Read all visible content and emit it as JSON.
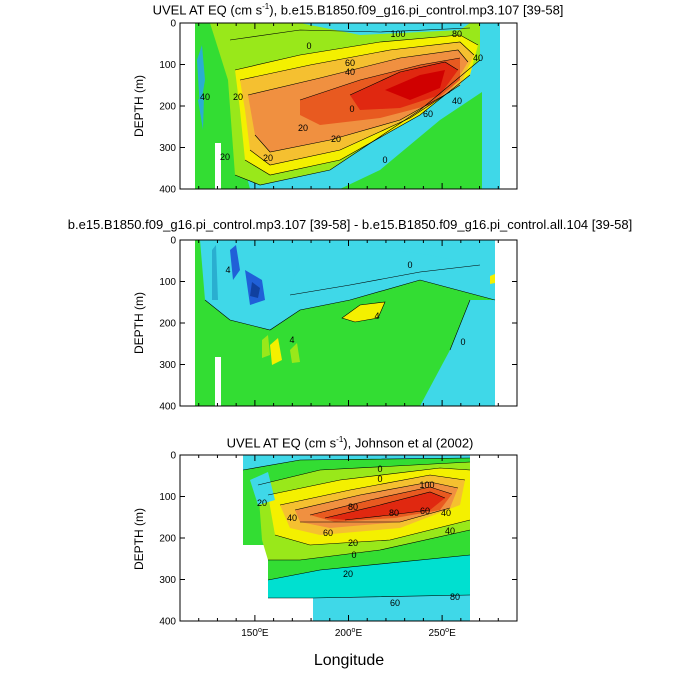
{
  "chart_data": [
    {
      "type": "heatmap",
      "title": "UVEL AT EQ (cm s",
      "title_sup": "-1",
      "title_rest": "), b.e15.B1850.f09_g16.pi_control.mp3.107 [39-58]",
      "ylabel": "DEPTH (m)",
      "ylim": [
        400,
        0
      ],
      "xlim": [
        110,
        290
      ],
      "yticks": [
        "0",
        "100",
        "200",
        "300",
        "400"
      ],
      "contour_labels": [
        "0",
        "20",
        "40",
        "60",
        "80",
        "100",
        "40",
        "20",
        "0",
        "60",
        "40",
        "20",
        "0",
        "20",
        "40",
        "20"
      ],
      "core": {
        "lon": 243,
        "depth": 80,
        "value": 100
      }
    },
    {
      "type": "heatmap",
      "title": "b.e15.B1850.f09_g16.pi_control.mp3.107 [39-58] - b.e15.B1850.f09_g16.pi_control.all.104 [39-58]",
      "ylabel": "DEPTH (m)",
      "ylim": [
        400,
        0
      ],
      "xlim": [
        110,
        290
      ],
      "yticks": [
        "0",
        "100",
        "200",
        "300",
        "400"
      ],
      "contour_labels": [
        "4",
        "4",
        "0",
        "4",
        "0"
      ]
    },
    {
      "type": "heatmap",
      "title": "UVEL AT EQ (cm s",
      "title_sup": "-1",
      "title_rest": "), Johnson et al (2002)",
      "ylabel": "DEPTH (m)",
      "xlabel": "Longitude",
      "ylim": [
        400,
        0
      ],
      "xlim": [
        110,
        290
      ],
      "yticks": [
        "0",
        "100",
        "200",
        "300",
        "400"
      ],
      "xticks": [
        {
          "lon": 150,
          "label": "150",
          "sup": "o",
          "suffix": "E"
        },
        {
          "lon": 200,
          "label": "200",
          "sup": "o",
          "suffix": "E"
        },
        {
          "lon": 250,
          "label": "250",
          "sup": "o",
          "suffix": "E"
        }
      ],
      "contour_labels": [
        "20",
        "40",
        "60",
        "80",
        "100",
        "80",
        "60",
        "40",
        "20",
        "0",
        "20",
        "40",
        "60",
        "80",
        "0",
        "0"
      ]
    }
  ],
  "colors": {
    "neg": "#3fd8e8",
    "neg2": "#00e0d0",
    "zero": "#33dd33",
    "pos1": "#99e81a",
    "pos2": "#f4f000",
    "pos3": "#f5c030",
    "pos4": "#f09040",
    "pos5": "#e85a20",
    "pos6": "#e02810",
    "pos7": "#d00000",
    "blue": "#2060d8"
  }
}
